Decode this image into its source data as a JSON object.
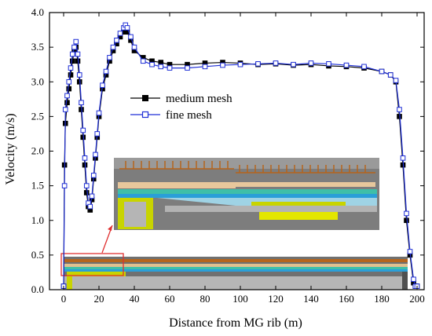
{
  "chart_data": {
    "type": "line",
    "xlabel": "Distance from MG rib (m)",
    "ylabel": "Velocity (m/s)",
    "xlim": [
      -8,
      204
    ],
    "ylim": [
      0,
      4.0
    ],
    "x_ticks": [
      0,
      20,
      40,
      60,
      80,
      100,
      120,
      140,
      160,
      180,
      200
    ],
    "y_ticks": [
      "0.0",
      "0.5",
      "1.0",
      "1.5",
      "2.0",
      "2.5",
      "3.0",
      "3.5",
      "4.0"
    ],
    "legend_position": "top-left",
    "series": [
      {
        "name": "medium mesh",
        "color": "#000000",
        "marker": "filled-square",
        "x": [
          0,
          0.5,
          1,
          2,
          3,
          4,
          5,
          6,
          7,
          8,
          9,
          10,
          11,
          12,
          13,
          14,
          15,
          16,
          17,
          18,
          19,
          20,
          22,
          24,
          26,
          28,
          30,
          32,
          34,
          35,
          36,
          38,
          40,
          45,
          50,
          55,
          60,
          70,
          80,
          90,
          100,
          110,
          120,
          130,
          140,
          150,
          160,
          170,
          180,
          185,
          188,
          190,
          192,
          194,
          196,
          198,
          199,
          200
        ],
        "y": [
          0.05,
          1.8,
          2.4,
          2.7,
          2.9,
          3.1,
          3.3,
          3.45,
          3.5,
          3.3,
          3.0,
          2.6,
          2.2,
          1.8,
          1.4,
          1.2,
          1.15,
          1.3,
          1.6,
          1.9,
          2.2,
          2.5,
          2.9,
          3.1,
          3.3,
          3.45,
          3.55,
          3.65,
          3.72,
          3.75,
          3.72,
          3.6,
          3.45,
          3.35,
          3.3,
          3.28,
          3.25,
          3.25,
          3.27,
          3.28,
          3.27,
          3.25,
          3.26,
          3.24,
          3.25,
          3.23,
          3.22,
          3.2,
          3.15,
          3.1,
          3.0,
          2.5,
          1.8,
          1.0,
          0.5,
          0.1,
          0.05,
          0.05
        ]
      },
      {
        "name": "fine mesh",
        "color": "#1f2fd6",
        "marker": "open-square",
        "x": [
          0,
          0.5,
          1,
          2,
          3,
          4,
          5,
          6,
          7,
          8,
          9,
          10,
          11,
          12,
          13,
          14,
          15,
          16,
          17,
          18,
          19,
          20,
          22,
          24,
          26,
          28,
          30,
          32,
          34,
          35,
          36,
          38,
          40,
          45,
          50,
          55,
          60,
          70,
          80,
          90,
          100,
          110,
          120,
          130,
          140,
          150,
          160,
          170,
          180,
          185,
          188,
          190,
          192,
          194,
          196,
          198,
          199,
          200
        ],
        "y": [
          0.05,
          1.5,
          2.6,
          2.8,
          3.0,
          3.2,
          3.4,
          3.5,
          3.58,
          3.4,
          3.1,
          2.7,
          2.3,
          1.9,
          1.5,
          1.25,
          1.2,
          1.35,
          1.65,
          1.95,
          2.25,
          2.55,
          2.95,
          3.15,
          3.35,
          3.5,
          3.6,
          3.7,
          3.78,
          3.82,
          3.78,
          3.65,
          3.5,
          3.3,
          3.25,
          3.22,
          3.2,
          3.2,
          3.22,
          3.24,
          3.25,
          3.26,
          3.27,
          3.25,
          3.27,
          3.26,
          3.24,
          3.22,
          3.15,
          3.1,
          3.02,
          2.6,
          1.9,
          1.1,
          0.55,
          0.15,
          0.05,
          0.05
        ]
      }
    ]
  }
}
